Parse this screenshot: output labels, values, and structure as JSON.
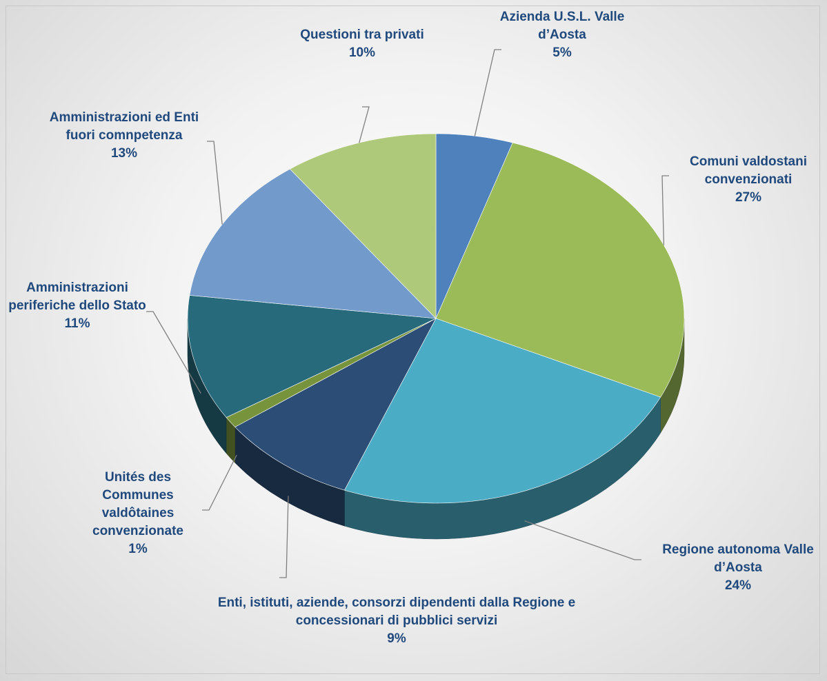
{
  "chart_data": {
    "type": "pie",
    "categories": [
      "Azienda U.S.L. Valle d’Aosta",
      "Comuni valdostani convenzionati",
      "Regione autonoma Valle d’Aosta",
      "Enti, istituti, aziende, consorzi dipendenti dalla Regione e concessionari di pubblici servizi",
      "Unités des Communes valdôtaines convenzionate",
      "Amministrazioni periferiche dello Stato",
      "Amministrazioni ed Enti fuori comnpetenza",
      "Questioni tra privati"
    ],
    "values": [
      5,
      27,
      24,
      9,
      1,
      11,
      13,
      10
    ],
    "value_labels": [
      "5%",
      "27%",
      "24%",
      "9%",
      "1%",
      "11%",
      "13%",
      "10%"
    ],
    "colors": [
      "#4f81bd",
      "#9bbb59",
      "#4bacc6",
      "#2c4d75",
      "#77933c",
      "#276a7c",
      "#729aca",
      "#afc97a"
    ]
  }
}
